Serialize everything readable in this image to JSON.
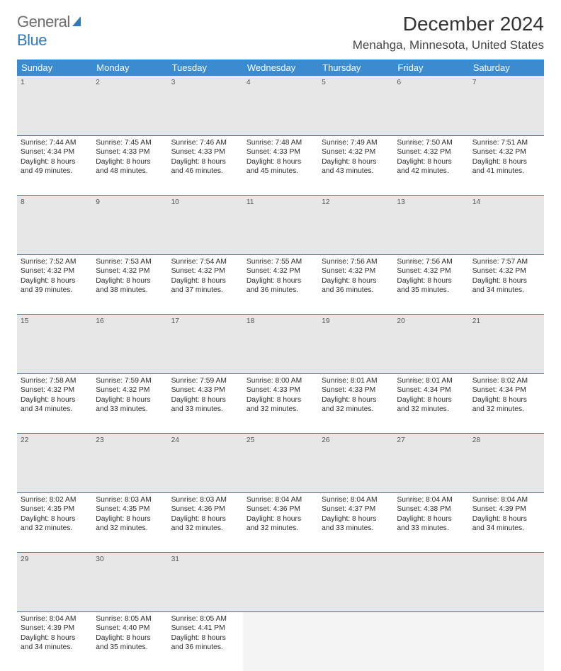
{
  "logo": {
    "word1": "General",
    "word2": "Blue",
    "icon_color": "#2f78c2"
  },
  "title": "December 2024",
  "location": "Menahga, Minnesota, United States",
  "colors": {
    "header_bg": "#3a8bd0",
    "header_text": "#ffffff",
    "daynum_bg": "#e7e7e7",
    "rule": "#2f6fa8"
  },
  "day_headers": [
    "Sunday",
    "Monday",
    "Tuesday",
    "Wednesday",
    "Thursday",
    "Friday",
    "Saturday"
  ],
  "weeks": [
    [
      {
        "num": "1",
        "sunrise": "Sunrise: 7:44 AM",
        "sunset": "Sunset: 4:34 PM",
        "day1": "Daylight: 8 hours",
        "day2": "and 49 minutes."
      },
      {
        "num": "2",
        "sunrise": "Sunrise: 7:45 AM",
        "sunset": "Sunset: 4:33 PM",
        "day1": "Daylight: 8 hours",
        "day2": "and 48 minutes."
      },
      {
        "num": "3",
        "sunrise": "Sunrise: 7:46 AM",
        "sunset": "Sunset: 4:33 PM",
        "day1": "Daylight: 8 hours",
        "day2": "and 46 minutes."
      },
      {
        "num": "4",
        "sunrise": "Sunrise: 7:48 AM",
        "sunset": "Sunset: 4:33 PM",
        "day1": "Daylight: 8 hours",
        "day2": "and 45 minutes."
      },
      {
        "num": "5",
        "sunrise": "Sunrise: 7:49 AM",
        "sunset": "Sunset: 4:32 PM",
        "day1": "Daylight: 8 hours",
        "day2": "and 43 minutes."
      },
      {
        "num": "6",
        "sunrise": "Sunrise: 7:50 AM",
        "sunset": "Sunset: 4:32 PM",
        "day1": "Daylight: 8 hours",
        "day2": "and 42 minutes."
      },
      {
        "num": "7",
        "sunrise": "Sunrise: 7:51 AM",
        "sunset": "Sunset: 4:32 PM",
        "day1": "Daylight: 8 hours",
        "day2": "and 41 minutes."
      }
    ],
    [
      {
        "num": "8",
        "sunrise": "Sunrise: 7:52 AM",
        "sunset": "Sunset: 4:32 PM",
        "day1": "Daylight: 8 hours",
        "day2": "and 39 minutes."
      },
      {
        "num": "9",
        "sunrise": "Sunrise: 7:53 AM",
        "sunset": "Sunset: 4:32 PM",
        "day1": "Daylight: 8 hours",
        "day2": "and 38 minutes."
      },
      {
        "num": "10",
        "sunrise": "Sunrise: 7:54 AM",
        "sunset": "Sunset: 4:32 PM",
        "day1": "Daylight: 8 hours",
        "day2": "and 37 minutes."
      },
      {
        "num": "11",
        "sunrise": "Sunrise: 7:55 AM",
        "sunset": "Sunset: 4:32 PM",
        "day1": "Daylight: 8 hours",
        "day2": "and 36 minutes."
      },
      {
        "num": "12",
        "sunrise": "Sunrise: 7:56 AM",
        "sunset": "Sunset: 4:32 PM",
        "day1": "Daylight: 8 hours",
        "day2": "and 36 minutes."
      },
      {
        "num": "13",
        "sunrise": "Sunrise: 7:56 AM",
        "sunset": "Sunset: 4:32 PM",
        "day1": "Daylight: 8 hours",
        "day2": "and 35 minutes."
      },
      {
        "num": "14",
        "sunrise": "Sunrise: 7:57 AM",
        "sunset": "Sunset: 4:32 PM",
        "day1": "Daylight: 8 hours",
        "day2": "and 34 minutes."
      }
    ],
    [
      {
        "num": "15",
        "sunrise": "Sunrise: 7:58 AM",
        "sunset": "Sunset: 4:32 PM",
        "day1": "Daylight: 8 hours",
        "day2": "and 34 minutes."
      },
      {
        "num": "16",
        "sunrise": "Sunrise: 7:59 AM",
        "sunset": "Sunset: 4:32 PM",
        "day1": "Daylight: 8 hours",
        "day2": "and 33 minutes."
      },
      {
        "num": "17",
        "sunrise": "Sunrise: 7:59 AM",
        "sunset": "Sunset: 4:33 PM",
        "day1": "Daylight: 8 hours",
        "day2": "and 33 minutes."
      },
      {
        "num": "18",
        "sunrise": "Sunrise: 8:00 AM",
        "sunset": "Sunset: 4:33 PM",
        "day1": "Daylight: 8 hours",
        "day2": "and 32 minutes."
      },
      {
        "num": "19",
        "sunrise": "Sunrise: 8:01 AM",
        "sunset": "Sunset: 4:33 PM",
        "day1": "Daylight: 8 hours",
        "day2": "and 32 minutes."
      },
      {
        "num": "20",
        "sunrise": "Sunrise: 8:01 AM",
        "sunset": "Sunset: 4:34 PM",
        "day1": "Daylight: 8 hours",
        "day2": "and 32 minutes."
      },
      {
        "num": "21",
        "sunrise": "Sunrise: 8:02 AM",
        "sunset": "Sunset: 4:34 PM",
        "day1": "Daylight: 8 hours",
        "day2": "and 32 minutes."
      }
    ],
    [
      {
        "num": "22",
        "sunrise": "Sunrise: 8:02 AM",
        "sunset": "Sunset: 4:35 PM",
        "day1": "Daylight: 8 hours",
        "day2": "and 32 minutes."
      },
      {
        "num": "23",
        "sunrise": "Sunrise: 8:03 AM",
        "sunset": "Sunset: 4:35 PM",
        "day1": "Daylight: 8 hours",
        "day2": "and 32 minutes."
      },
      {
        "num": "24",
        "sunrise": "Sunrise: 8:03 AM",
        "sunset": "Sunset: 4:36 PM",
        "day1": "Daylight: 8 hours",
        "day2": "and 32 minutes."
      },
      {
        "num": "25",
        "sunrise": "Sunrise: 8:04 AM",
        "sunset": "Sunset: 4:36 PM",
        "day1": "Daylight: 8 hours",
        "day2": "and 32 minutes."
      },
      {
        "num": "26",
        "sunrise": "Sunrise: 8:04 AM",
        "sunset": "Sunset: 4:37 PM",
        "day1": "Daylight: 8 hours",
        "day2": "and 33 minutes."
      },
      {
        "num": "27",
        "sunrise": "Sunrise: 8:04 AM",
        "sunset": "Sunset: 4:38 PM",
        "day1": "Daylight: 8 hours",
        "day2": "and 33 minutes."
      },
      {
        "num": "28",
        "sunrise": "Sunrise: 8:04 AM",
        "sunset": "Sunset: 4:39 PM",
        "day1": "Daylight: 8 hours",
        "day2": "and 34 minutes."
      }
    ],
    [
      {
        "num": "29",
        "sunrise": "Sunrise: 8:04 AM",
        "sunset": "Sunset: 4:39 PM",
        "day1": "Daylight: 8 hours",
        "day2": "and 34 minutes."
      },
      {
        "num": "30",
        "sunrise": "Sunrise: 8:05 AM",
        "sunset": "Sunset: 4:40 PM",
        "day1": "Daylight: 8 hours",
        "day2": "and 35 minutes."
      },
      {
        "num": "31",
        "sunrise": "Sunrise: 8:05 AM",
        "sunset": "Sunset: 4:41 PM",
        "day1": "Daylight: 8 hours",
        "day2": "and 36 minutes."
      },
      null,
      null,
      null,
      null
    ]
  ]
}
